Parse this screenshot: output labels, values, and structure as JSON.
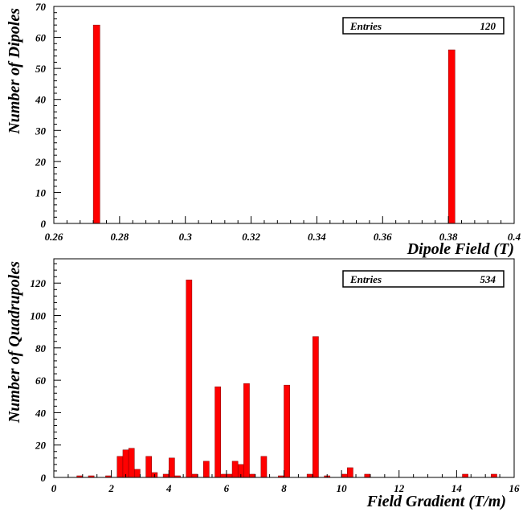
{
  "chart_data": [
    {
      "type": "bar",
      "xlabel": "Dipole Field (T)",
      "ylabel": "Number of Dipoles",
      "xlim": [
        0.26,
        0.4
      ],
      "ylim": [
        0,
        70
      ],
      "xticks": [
        "0.26",
        "0.28",
        "0.3",
        "0.32",
        "0.34",
        "0.36",
        "0.38",
        "0.4"
      ],
      "yticks": [
        "0",
        "10",
        "20",
        "30",
        "40",
        "50",
        "60",
        "70"
      ],
      "bin_width": 0.002,
      "bar_color": "#ff0000",
      "bins": [
        {
          "x": 0.273,
          "y": 64
        },
        {
          "x": 0.381,
          "y": 56
        }
      ],
      "stats": {
        "label": "Entries",
        "value": "120"
      }
    },
    {
      "type": "bar",
      "xlabel": "Field Gradient (T/m)",
      "ylabel": "Number of Quadrupoles",
      "xlim": [
        0,
        16
      ],
      "ylim": [
        0,
        135
      ],
      "xticks": [
        "0",
        "2",
        "4",
        "6",
        "8",
        "10",
        "12",
        "14",
        "16"
      ],
      "yticks": [
        "0",
        "20",
        "40",
        "60",
        "80",
        "100",
        "120"
      ],
      "bin_width": 0.2,
      "bar_color": "#ff0000",
      "bins": [
        {
          "x": 0.9,
          "y": 1
        },
        {
          "x": 1.3,
          "y": 1
        },
        {
          "x": 1.9,
          "y": 1
        },
        {
          "x": 2.3,
          "y": 13
        },
        {
          "x": 2.5,
          "y": 17
        },
        {
          "x": 2.7,
          "y": 18
        },
        {
          "x": 2.9,
          "y": 5
        },
        {
          "x": 3.3,
          "y": 13
        },
        {
          "x": 3.5,
          "y": 3
        },
        {
          "x": 3.9,
          "y": 2
        },
        {
          "x": 4.1,
          "y": 12
        },
        {
          "x": 4.3,
          "y": 1
        },
        {
          "x": 4.7,
          "y": 122
        },
        {
          "x": 4.9,
          "y": 2
        },
        {
          "x": 5.3,
          "y": 10
        },
        {
          "x": 5.7,
          "y": 56
        },
        {
          "x": 5.9,
          "y": 2
        },
        {
          "x": 6.1,
          "y": 2
        },
        {
          "x": 6.3,
          "y": 10
        },
        {
          "x": 6.5,
          "y": 8
        },
        {
          "x": 6.7,
          "y": 58
        },
        {
          "x": 6.9,
          "y": 2
        },
        {
          "x": 7.3,
          "y": 13
        },
        {
          "x": 7.9,
          "y": 1
        },
        {
          "x": 8.1,
          "y": 57
        },
        {
          "x": 8.9,
          "y": 2
        },
        {
          "x": 9.1,
          "y": 87
        },
        {
          "x": 9.5,
          "y": 1
        },
        {
          "x": 10.1,
          "y": 2
        },
        {
          "x": 10.3,
          "y": 6
        },
        {
          "x": 10.9,
          "y": 2
        },
        {
          "x": 14.3,
          "y": 2
        },
        {
          "x": 15.3,
          "y": 2
        }
      ],
      "stats": {
        "label": "Entries",
        "value": "534"
      }
    }
  ]
}
